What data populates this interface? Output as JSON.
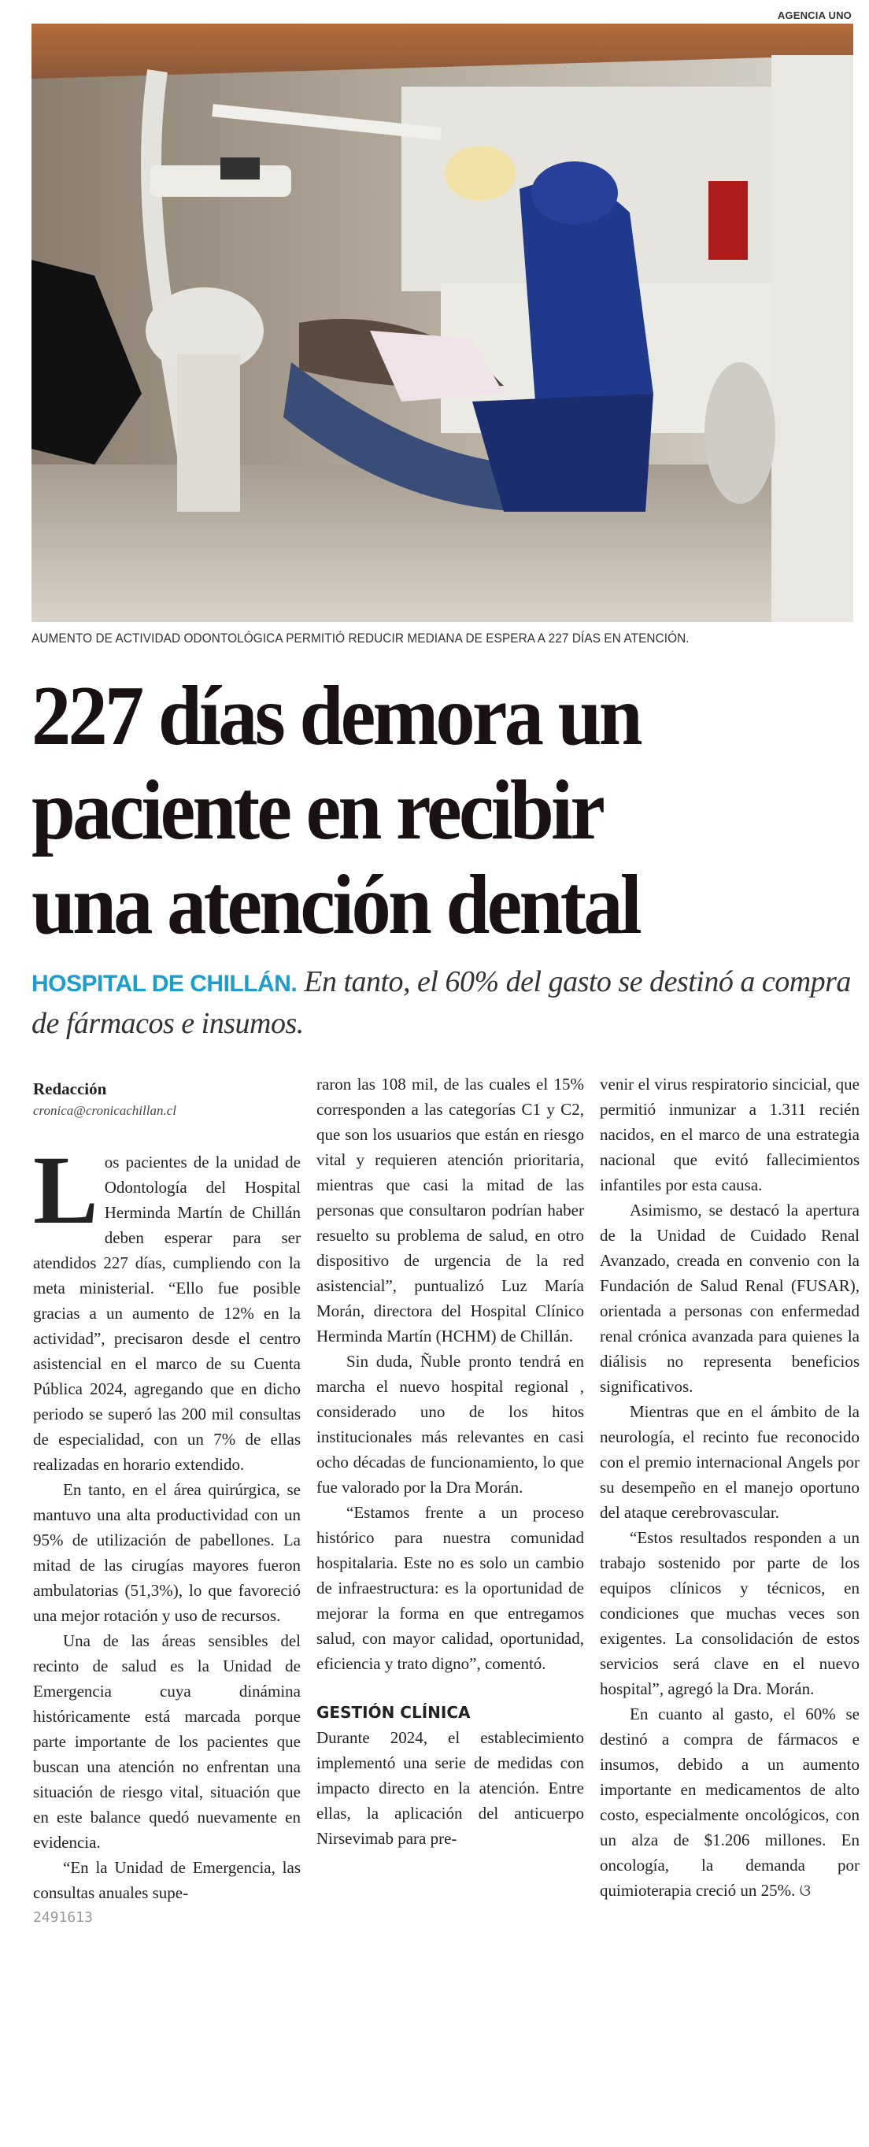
{
  "photo": {
    "credit": "AGENCIA UNO",
    "caption": "AUMENTO DE ACTIVIDAD ODONTOLÓGICA PERMITIÓ REDUCIR MEDIANA DE ESPERA A 227 DÍAS EN ATENCIÓN."
  },
  "headline": {
    "line1": "227 días demora un",
    "line2": "paciente en recibir",
    "line3": "una atención dental"
  },
  "subhead": {
    "kicker": "HOSPITAL DE CHILLÁN.",
    "text": " En tanto, el 60% del gasto se destinó a compra de fármacos e  insumos."
  },
  "byline": {
    "author": "Redacción",
    "email": "cronica@cronicachillan.cl"
  },
  "accent_color": "#1a9dcf",
  "columns": {
    "c1": {
      "drop_cap": "L",
      "p1": "os pacientes de la unidad de Odontología del Hospital Herminda Martín de Chillán  deben esperar para ser atendidos 227 días, cumpliendo con la meta ministerial. “Ello fue posible gracias a un aumento de 12% en la actividad”, precisaron desde el centro asistencial en el marco de su Cuenta Pública 2024, agregando que en dicho periodo se superó las 200 mil consultas de especialidad, con un 7% de ellas realizadas en horario extendido.",
      "p2": "En tanto, en el área quirúrgica, se mantuvo una alta productividad con un 95% de utilización de pabellones. La mitad de las cirugías mayores fueron ambulatorias (51,3%), lo que favoreció una mejor rotación y uso de recursos.",
      "p3": "Una de las áreas sensibles del recinto de salud es la Unidad de Emergencia cuya dinámina históricamente está marcada porque parte importante de los pacientes que buscan una atención no enfrentan una situación de riesgo vital, situación que en este balance quedó nuevamente en evidencia.",
      "p4": "“En la Unidad de Emergencia, las consultas anuales supe-"
    },
    "c2": {
      "p1": "raron las 108 mil, de las cuales el 15% corresponden a las categorías C1 y C2, que son los usuarios que están en riesgo vital y requieren atención prioritaria, mientras que casi la mitad de las personas que consultaron podrían haber resuelto su problema de salud, en otro dispositivo de urgencia de la red asistencial”, puntualizó Luz María Morán, directora del Hospital Clínico Herminda Martín (HCHM) de Chillán.",
      "p2": "Sin duda, Ñuble pronto tendrá en marcha el nuevo hospital regional , considerado uno de los hitos institucionales más relevantes en casi ocho décadas de funcionamiento, lo que fue valorado por la Dra Morán.",
      "p3": "“Estamos frente a un proceso histórico para nuestra comunidad hospitalaria. Este no es solo un cambio de infraestructura: es la oportunidad de mejorar la forma en que entregamos salud, con mayor calidad, oportunidad, eficiencia y trato digno”, comentó.",
      "section_title": "GESTIÓN CLÍNICA",
      "p4": "Durante 2024, el establecimiento implementó una serie de medidas con impacto directo en la atención. Entre ellas, la aplicación del anticuerpo Nirsevimab para pre-"
    },
    "c3": {
      "p1": "venir el virus respiratorio sincicial, que permitió inmunizar a 1.311 recién nacidos, en el marco de una estrategia nacional que evitó fallecimientos infantiles por esta causa.",
      "p2": "Asimismo, se destacó la apertura de la Unidad de Cuidado Renal Avanzado, creada en convenio con la Fundación de Salud Renal (FUSAR), orientada a personas con enfermedad renal crónica avanzada para quienes la diálisis no representa beneficios significativos.",
      "p3": "Mientras que en el ámbito de la neurología, el recinto fue reconocido con el premio internacional Angels por su desempeño en el manejo oportuno del ataque cerebrovascular.",
      "p4": "“Estos resultados responden a un trabajo sostenido por parte de los equipos clínicos y técnicos, en condiciones que muchas veces son exigentes. La consolidación de estos servicios será clave en el nuevo hospital”, agregó la Dra. Morán.",
      "p5": "En cuanto al gasto, el 60% se destinó a compra de fármacos e insumos, debido a un aumento importante en medicamentos de alto costo, especialmente oncológicos, con un alza de $1.206 millones. En oncología, la demanda por quimioterapia creció un 25%.",
      "end_mark": " ଓ"
    }
  },
  "page_code": "2491613"
}
